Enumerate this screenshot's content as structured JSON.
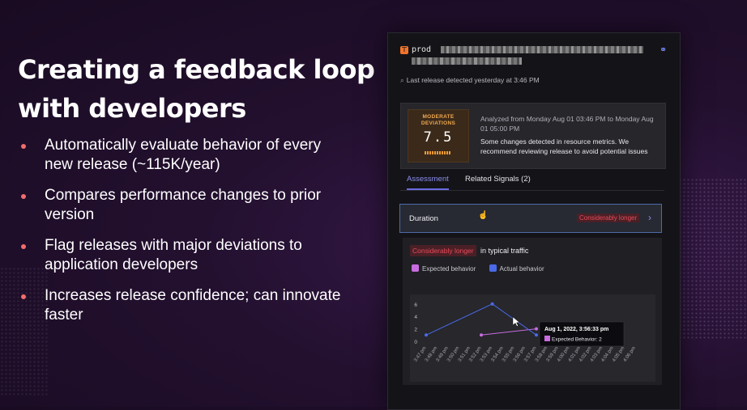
{
  "slide": {
    "headline": "Creating a feedback loop with developers",
    "bullets": [
      "Automatically evaluate behavior of every new release (~115K/year)",
      "Compares performance changes to prior version",
      "Flag releases with major deviations to application developers",
      "Increases release confidence; can innovate faster"
    ],
    "bullet_color": "#f26d6d"
  },
  "panel": {
    "logo_icon": "service-logo-icon",
    "prod_label": "prod",
    "link_icon": "link-icon",
    "last_release": "Last release detected yesterday at 3:46 PM",
    "score": {
      "title": "MODERATE DEVIATIONS",
      "value": "7.5"
    },
    "analyzed": "Analyzed from Monday Aug 01 03:46 PM to Monday Aug 01 05:00 PM",
    "changes": "Some changes detected in resource metrics. We recommend reviewing release to avoid potential issues",
    "tabs": [
      {
        "label": "Assessment",
        "active": true
      },
      {
        "label": "Related Signals (2)",
        "active": false
      }
    ],
    "duration": {
      "label": "Duration",
      "badge": "Considerably longer"
    },
    "detail": {
      "badge": "Considerably longer",
      "text": "in typical traffic",
      "legend": [
        {
          "label": "Expected behavior",
          "color": "#c86ce0"
        },
        {
          "label": "Actual behavior",
          "color": "#4a6ae8"
        }
      ]
    }
  },
  "chart_data": {
    "type": "line",
    "x": [
      "3:47 pm",
      "3:48 pm",
      "3:49 pm",
      "3:50 pm",
      "3:51 pm",
      "3:52 pm",
      "3:53 pm",
      "3:54 pm",
      "3:55 pm",
      "3:56 pm",
      "3:57 pm",
      "3:58 pm",
      "3:59 pm",
      "4:00 pm",
      "4:01 pm",
      "4:02 pm",
      "4:03 pm",
      "4:04 pm",
      "4:05 pm",
      "4:06 pm"
    ],
    "yticks": [
      0,
      2,
      4,
      6
    ],
    "ylim": [
      0,
      6.5
    ],
    "series": [
      {
        "name": "Expected behavior",
        "color": "#c86ce0",
        "points": [
          {
            "x": "3:52 pm",
            "y": 1
          },
          {
            "x": "3:57 pm",
            "y": 2
          }
        ]
      },
      {
        "name": "Actual behavior",
        "color": "#4a6ae8",
        "points": [
          {
            "x": "3:47 pm",
            "y": 1
          },
          {
            "x": "3:53 pm",
            "y": 6
          },
          {
            "x": "3:57 pm",
            "y": 1
          }
        ]
      }
    ],
    "tooltip": {
      "title": "Aug 1, 2022, 3:56:33 pm",
      "label": "Expected Behavior: 2",
      "color": "#c86ce0"
    },
    "grid": false
  }
}
